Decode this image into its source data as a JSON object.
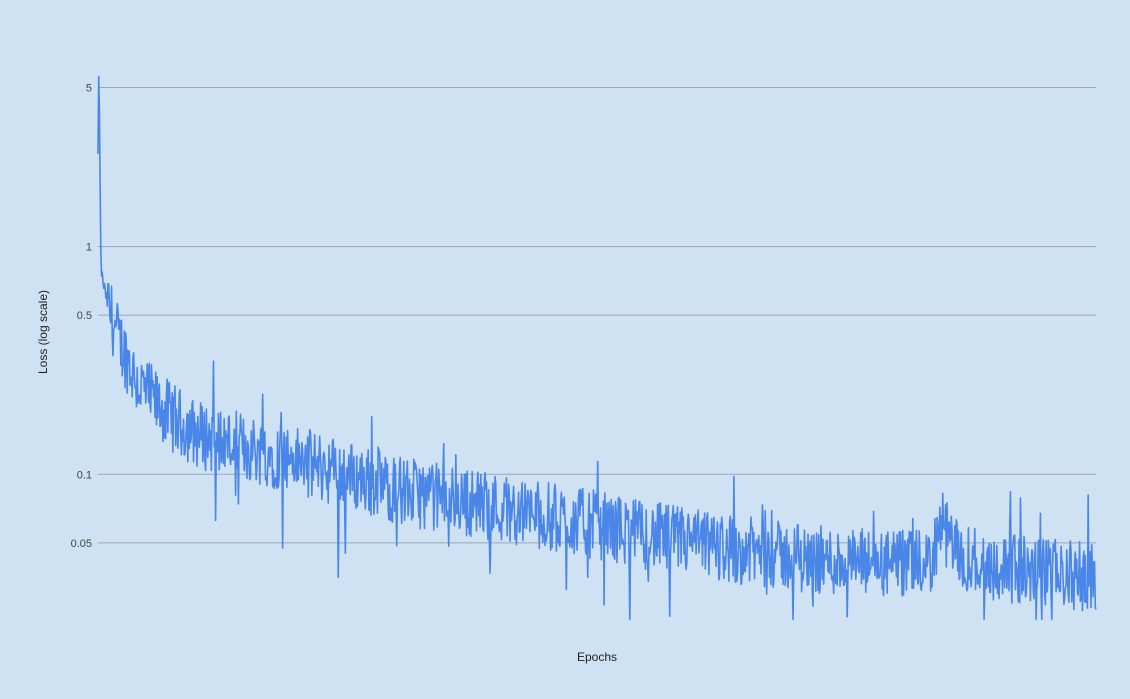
{
  "chart_data": {
    "type": "line",
    "title": "",
    "xlabel": "Epochs",
    "ylabel": "Loss (log scale)",
    "y_scale": "log",
    "ylim": [
      0.022,
      8
    ],
    "x_tick_labels": [],
    "y_ticks": [
      {
        "value": 5,
        "label": "5"
      },
      {
        "value": 1,
        "label": "1"
      },
      {
        "value": 0.5,
        "label": "0.5"
      },
      {
        "value": 0.1,
        "label": "0.1"
      },
      {
        "value": 0.05,
        "label": "0.05"
      }
    ],
    "grid": true,
    "legend": "none",
    "colors": {
      "background": "#cfe2f3",
      "line": "#4a86e8",
      "gridline": "#9aa7b3"
    },
    "series": [
      {
        "name": "",
        "trend_x": [
          0,
          0.001,
          0.002,
          0.003,
          0.005,
          0.01,
          0.02,
          0.04,
          0.06,
          0.08,
          0.1,
          0.15,
          0.2,
          0.25,
          0.3,
          0.35,
          0.4,
          0.45,
          0.5,
          0.55,
          0.6,
          0.65,
          0.7,
          0.75,
          0.8,
          0.833,
          0.845,
          0.86,
          0.9,
          0.95,
          1.0
        ],
        "trend_y": [
          2.5,
          7.0,
          2.0,
          0.8,
          0.7,
          0.55,
          0.4,
          0.25,
          0.2,
          0.17,
          0.15,
          0.13,
          0.115,
          0.1,
          0.085,
          0.078,
          0.072,
          0.065,
          0.06,
          0.054,
          0.05,
          0.046,
          0.043,
          0.041,
          0.04,
          0.04,
          0.06,
          0.045,
          0.039,
          0.037,
          0.035
        ],
        "noise_amplitude": 0.35
      }
    ]
  }
}
